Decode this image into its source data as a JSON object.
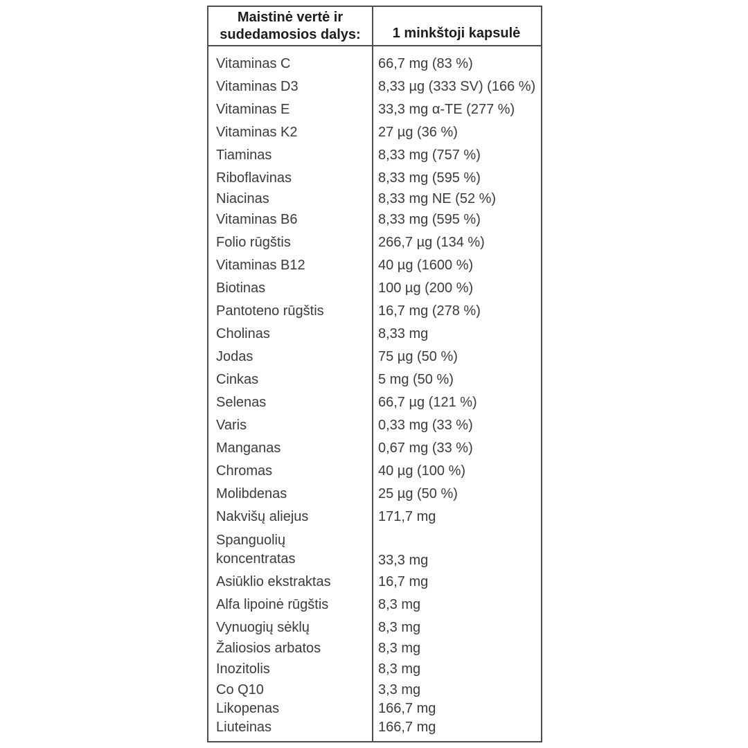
{
  "table": {
    "header": {
      "col1": "Maistinė vertė ir sudedamosios dalys:",
      "col2": "1 minkštoji kapsulė"
    },
    "rows": [
      {
        "name": "Vitaminas C",
        "value": "66,7 mg (83 %)"
      },
      {
        "name": "Vitaminas D3",
        "value": "8,33 µg (333 SV) (166 %)",
        "overflow": true
      },
      {
        "name": "Vitaminas E",
        "value": "33,3 mg α-TE (277 %)"
      },
      {
        "name": "Vitaminas K2",
        "value": "27 µg (36 %)"
      },
      {
        "name": "Tiaminas",
        "value": "8,33 mg (757 %)"
      },
      {
        "name": "Riboflavinas",
        "value": "8,33 mg (595 %)"
      },
      {
        "name": "Niacinas",
        "value": "8,33 mg NE (52 %)",
        "tight": true
      },
      {
        "name": "Vitaminas B6",
        "value": "8,33 mg (595 %)"
      },
      {
        "name": "Folio rūgštis",
        "value": "266,7 µg (134 %)"
      },
      {
        "name": "Vitaminas B12",
        "value": "40 µg (1600 %)"
      },
      {
        "name": "Biotinas",
        "value": "100 µg (200 %)"
      },
      {
        "name": "Pantoteno rūgštis",
        "value": "16,7 mg (278 %)"
      },
      {
        "name": "Cholinas",
        "value": "8,33 mg"
      },
      {
        "name": "Jodas",
        "value": "75 µg (50 %)"
      },
      {
        "name": "Cinkas",
        "value": "5 mg (50 %)"
      },
      {
        "name": "Selenas",
        "value": "66,7 µg (121 %)"
      },
      {
        "name": "Varis",
        "value": "0,33 mg (33 %)"
      },
      {
        "name": "Manganas",
        "value": "0,67 mg (33 %)"
      },
      {
        "name": "Chromas",
        "value": "40 µg (100 %)"
      },
      {
        "name": "Molibdenas",
        "value": "25 µg (50 %)"
      },
      {
        "name": "Nakvišų aliejus",
        "value": "171,7 mg"
      },
      {
        "name": "Spanguolių koncentratas",
        "value": "33,3 mg",
        "wrap": true
      },
      {
        "name": "Asiūklio ekstraktas",
        "value": "16,7 mg"
      },
      {
        "name": "Alfa lipoinė rūgštis",
        "value": "8,3 mg"
      },
      {
        "name": "Vynuogių sėklų",
        "value": "8,3 mg"
      },
      {
        "name": "Žaliosios arbatos",
        "value": "8,3 mg",
        "tight": true
      },
      {
        "name": "Inozitolis",
        "value": "8,3 mg"
      },
      {
        "name": "Co Q10",
        "value": "3,3 mg",
        "tight": true
      },
      {
        "name": "Likopenas",
        "value": "166,7 mg",
        "tight": true
      },
      {
        "name": "Liuteinas",
        "value": "166,7 mg",
        "tight": true
      }
    ],
    "colors": {
      "border": "#4c4c4c",
      "header_text": "#1d1d1d",
      "body_text": "#3b3b3b",
      "background": "#ffffff"
    }
  }
}
